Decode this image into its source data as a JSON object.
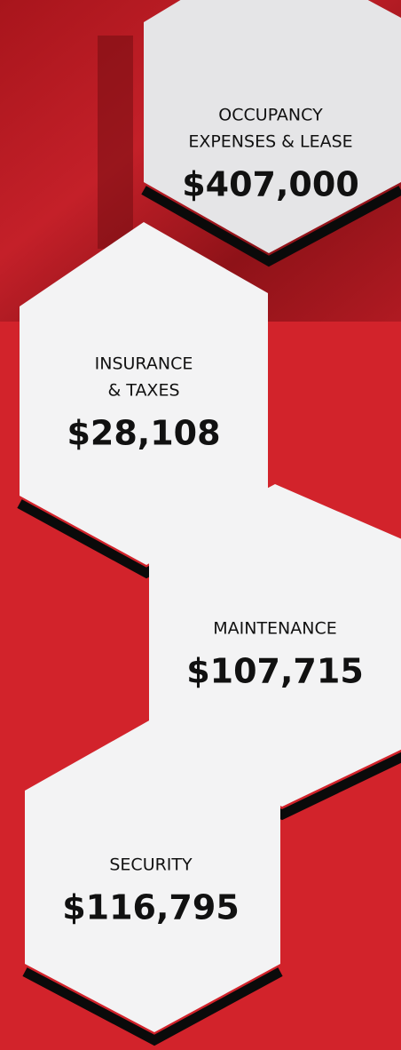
{
  "hexagons": [
    {
      "label_lines": [
        "OCCUPANCY",
        "EXPENSES & LEASE"
      ],
      "amount": "$407,000"
    },
    {
      "label_lines": [
        "INSURANCE",
        "& TAXES"
      ],
      "amount": "$28,108"
    },
    {
      "label_lines": [
        "MAINTENANCE"
      ],
      "amount": "$107,715"
    },
    {
      "label_lines": [
        "SECURITY"
      ],
      "amount": "$116,795"
    }
  ]
}
